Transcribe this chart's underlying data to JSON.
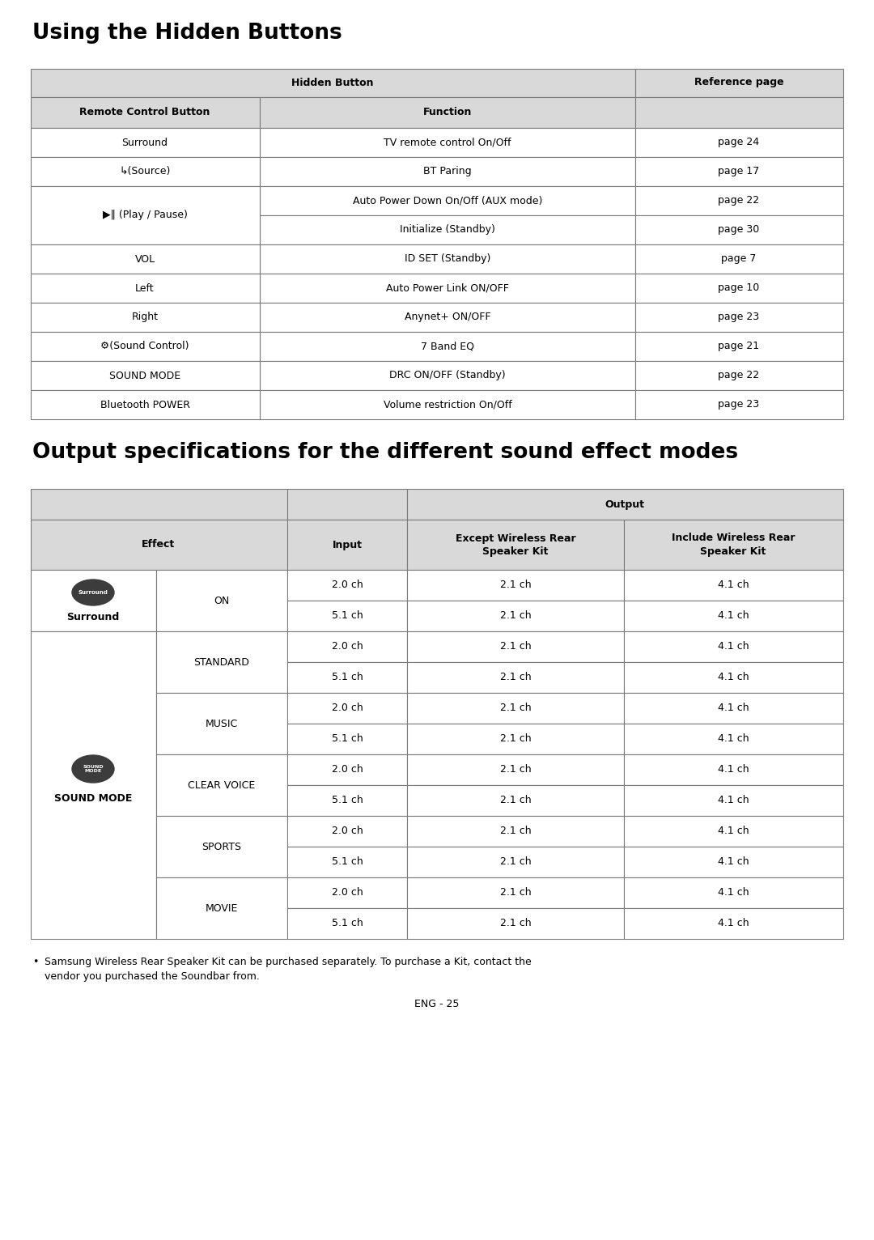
{
  "title1": "Using the Hidden Buttons",
  "title2": "Output specifications for the different sound effect modes",
  "table1_header1": "Hidden Button",
  "table1_header2": "Reference page",
  "table1_col1": "Remote Control Button",
  "table1_col2": "Function",
  "table1_rows": [
    [
      "Surround",
      "TV remote control On/Off",
      "page 24"
    ],
    [
      "↳(Source)",
      "BT Paring",
      "page 17"
    ],
    [
      "▶‖ (Play / Pause)",
      "Auto Power Down On/Off (AUX mode)",
      "page 22"
    ],
    [
      "▶‖ (Play / Pause)",
      "Initialize (Standby)",
      "page 30"
    ],
    [
      "VOL",
      "ID SET (Standby)",
      "page 7"
    ],
    [
      "Left",
      "Auto Power Link ON/OFF",
      "page 10"
    ],
    [
      "Right",
      "Anynet+ ON/OFF",
      "page 23"
    ],
    [
      "⚙(Sound Control)",
      "7 Band EQ",
      "page 21"
    ],
    [
      "SOUND MODE",
      "DRC ON/OFF (Standby)",
      "page 22"
    ],
    [
      "Bluetooth POWER",
      "Volume restriction On/Off",
      "page 23"
    ]
  ],
  "table2_header_effect": "Effect",
  "table2_header_input": "Input",
  "table2_header_output": "Output",
  "table2_header_except": "Except Wireless Rear\nSpeaker Kit",
  "table2_header_include": "Include Wireless Rear\nSpeaker Kit",
  "footnote_bullet": "•",
  "footnote_line1": "Samsung Wireless Rear Speaker Kit can be purchased separately. To purchase a Kit, contact the",
  "footnote_line2": "vendor you purchased the Soundbar from.",
  "page_number": "ENG - 25",
  "bg_color": "#ffffff",
  "header_bg": "#d9d9d9",
  "cell_bg": "#ffffff",
  "border_color": "#7a7a7a",
  "text_color": "#000000"
}
